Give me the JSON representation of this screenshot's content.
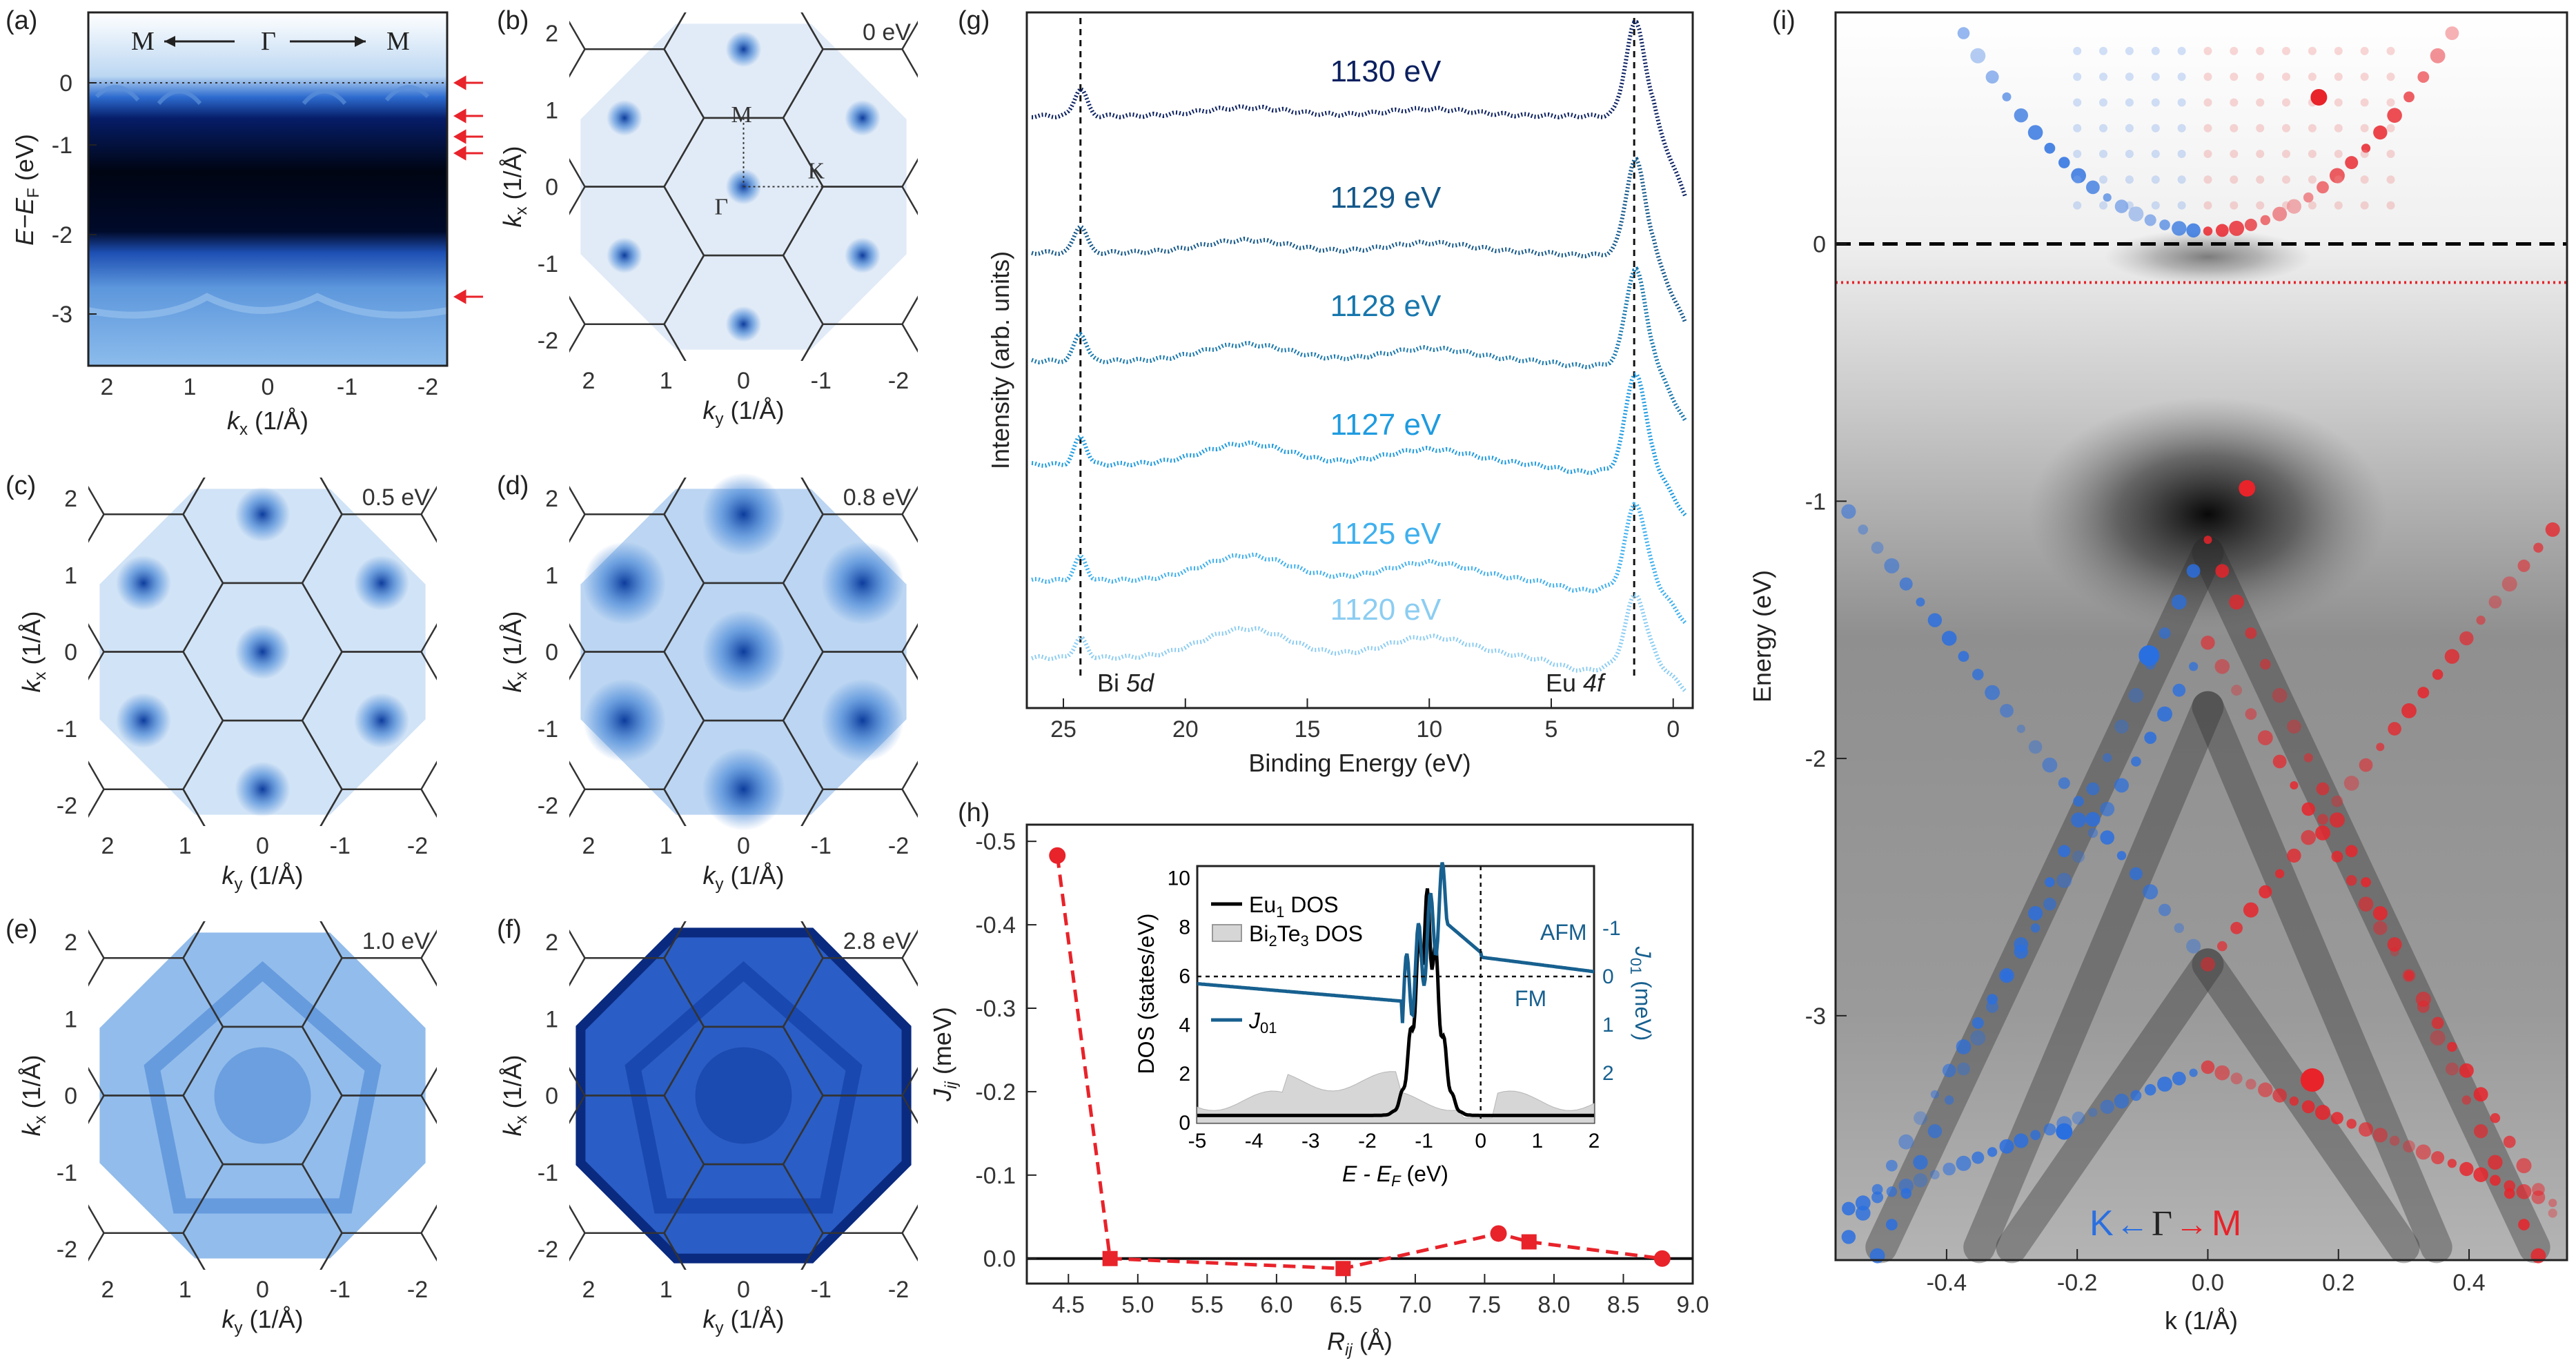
{
  "panels": {
    "a": {
      "label": "(a)",
      "dir_left": "M",
      "dir_center": "Γ",
      "dir_right": "M",
      "ylabel": "E−E",
      "ylabel_sub": "F",
      "ylabel_unit": " (eV)",
      "xlabel": "k",
      "xlabel_sub": "x",
      "xlabel_unit": " (1/Å)",
      "yticks": [
        "0",
        "-1",
        "-2",
        "-3"
      ],
      "xticks": [
        "2",
        "1",
        "0",
        "-1",
        "-2"
      ]
    },
    "b": {
      "label": "(b)",
      "energy": "0 eV",
      "pt_M": "M",
      "pt_K": "K",
      "pt_G": "Γ",
      "yticks": [
        "2",
        "1",
        "0",
        "-1",
        "-2"
      ],
      "xticks": [
        "2",
        "1",
        "0",
        "-1",
        "-2"
      ]
    },
    "c": {
      "label": "(c)",
      "energy": "0.5 eV",
      "yticks": [
        "2",
        "1",
        "0",
        "-1",
        "-2"
      ],
      "xticks": [
        "2",
        "1",
        "0",
        "-1",
        "-2"
      ]
    },
    "d": {
      "label": "(d)",
      "energy": "0.8 eV",
      "yticks": [
        "2",
        "1",
        "0",
        "-1",
        "-2"
      ],
      "xticks": [
        "2",
        "1",
        "0",
        "-1",
        "-2"
      ]
    },
    "e": {
      "label": "(e)",
      "energy": "1.0 eV",
      "yticks": [
        "2",
        "1",
        "0",
        "-1",
        "-2"
      ],
      "xticks": [
        "2",
        "1",
        "0",
        "-1",
        "-2"
      ]
    },
    "f": {
      "label": "(f)",
      "energy": "2.8 eV",
      "yticks": [
        "2",
        "1",
        "0",
        "-1",
        "-2"
      ],
      "xticks": [
        "2",
        "1",
        "0",
        "-1",
        "-2"
      ]
    },
    "map_ylabel": "k",
    "map_ylabel_sub": "x",
    "map_ylabel_unit": " (1/Å)",
    "map_xlabel": "k",
    "map_xlabel_sub": "y",
    "map_xlabel_unit": " (1/Å)",
    "g": {
      "label": "(g)",
      "bi": "Bi ",
      "bi_it": "5d",
      "eu": "Eu ",
      "eu_it": "4f"
    },
    "h": {
      "label": "(h)",
      "inset_leg1": "Eu",
      "inset_leg1_sub": "1",
      "inset_leg1_tail": " DOS",
      "inset_leg2": "Bi",
      "inset_leg2_sub1": "2",
      "inset_leg2_mid": "Te",
      "inset_leg2_sub2": "3",
      "inset_leg2_tail": " DOS",
      "inset_leg3": "J",
      "inset_leg3_sub": "01",
      "inset_afm": "AFM",
      "inset_fm": "FM",
      "inset_ylabel": "DOS (states/eV)",
      "inset_ylabel2": "J",
      "inset_ylabel2_sub": "01",
      "inset_ylabel2_unit": " (meV)",
      "inset_xlabel": "E - E",
      "inset_xlabel_sub": "F",
      "inset_xlabel_unit": " (eV)"
    },
    "i": {
      "label": "(i)",
      "k_label": "K",
      "g_label": "Γ",
      "m_label": "M"
    }
  },
  "chart_data": [
    {
      "id": "g",
      "type": "line",
      "title": "",
      "xlabel": "Binding Energy (eV)",
      "ylabel": "Intensity (arb. units)",
      "xlim": [
        26.5,
        -0.8
      ],
      "xticks": [
        "25",
        "20",
        "15",
        "10",
        "5",
        "0"
      ],
      "reference_lines": [
        {
          "x": 24.3,
          "label": "Bi 5d"
        },
        {
          "x": 1.6,
          "label": "Eu 4f"
        }
      ],
      "series": [
        {
          "name": "1130 eV",
          "color": "#0b2060"
        },
        {
          "name": "1129 eV",
          "color": "#14588a"
        },
        {
          "name": "1128 eV",
          "color": "#1777ad"
        },
        {
          "name": "1127 eV",
          "color": "#1e9be0"
        },
        {
          "name": "1125 eV",
          "color": "#3fb0ee"
        },
        {
          "name": "1120 eV",
          "color": "#8ccdf2"
        }
      ]
    },
    {
      "id": "h",
      "type": "scatter",
      "xlabel": "R",
      "xlabel_sub": "ij",
      "xlabel_unit": " (Å)",
      "ylabel": "J",
      "ylabel_sub": "ij",
      "ylabel_unit": " (meV)",
      "xlim": [
        4.2,
        9.0
      ],
      "ylim": [
        0.03,
        -0.52
      ],
      "xticks": [
        "4.5",
        "5.0",
        "5.5",
        "6.0",
        "6.5",
        "7.0",
        "7.5",
        "8.0",
        "8.5",
        "9.0"
      ],
      "yticks": [
        "-0.5",
        "-0.4",
        "-0.3",
        "-0.2",
        "-0.1",
        "0.0"
      ],
      "points": [
        {
          "x": 4.42,
          "y": -0.483,
          "marker": "circle"
        },
        {
          "x": 4.8,
          "y": 0.0,
          "marker": "square"
        },
        {
          "x": 6.48,
          "y": 0.012,
          "marker": "square"
        },
        {
          "x": 7.6,
          "y": -0.03,
          "marker": "circle"
        },
        {
          "x": 7.82,
          "y": -0.02,
          "marker": "square"
        },
        {
          "x": 8.78,
          "y": 0.0,
          "marker": "circle"
        }
      ],
      "inset": {
        "xlim": [
          -5,
          2
        ],
        "xticks": [
          "-5",
          "-4",
          "-3",
          "-2",
          "-1",
          "0",
          "1",
          "2"
        ],
        "yticks_left": [
          "0",
          "2",
          "4",
          "6",
          "8",
          "10"
        ],
        "yticks_right": [
          "-1",
          "0",
          "1",
          "2"
        ]
      }
    },
    {
      "id": "i",
      "type": "scatter",
      "xlabel": "k (1/Å)",
      "ylabel": "Energy (eV)",
      "xlim": [
        -0.57,
        0.55
      ],
      "ylim": [
        -3.95,
        0.9
      ],
      "xticks": [
        "-0.4",
        "-0.2",
        "0.0",
        "0.2",
        "0.4"
      ],
      "yticks": [
        "0",
        "-1",
        "-2",
        "-3"
      ],
      "reference_lines": [
        {
          "y": 0.0,
          "style": "black dashed"
        },
        {
          "y": -0.15,
          "style": "red dotted"
        }
      ]
    }
  ]
}
